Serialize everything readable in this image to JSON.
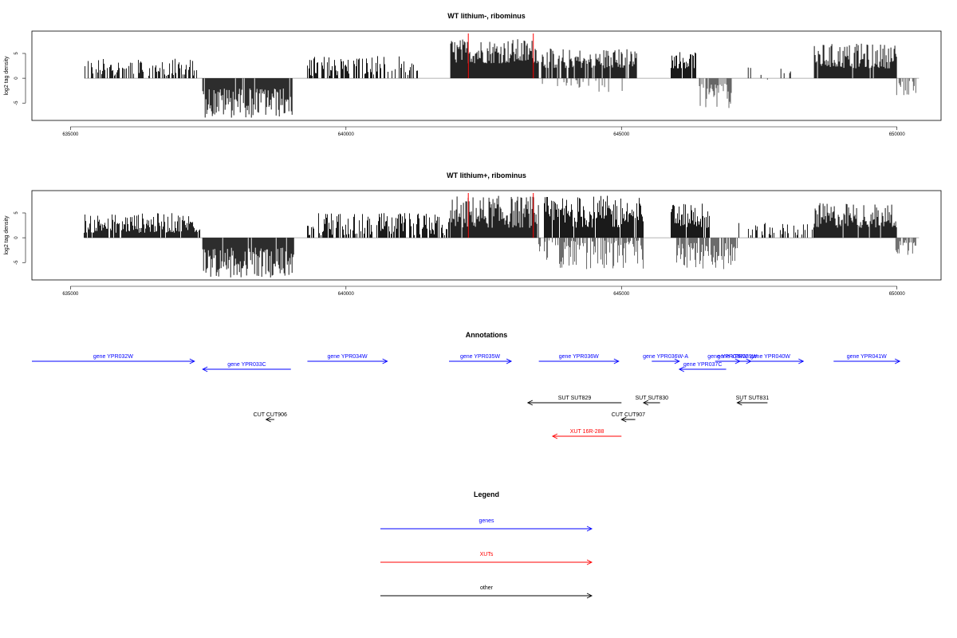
{
  "chart_data": [
    {
      "type": "bar",
      "title": "WT lithium-, ribominus",
      "xlabel": "",
      "ylabel": "log2 tag density",
      "xlim": [
        634300,
        650800
      ],
      "ylim": [
        -8.5,
        9.5
      ],
      "x_ticks": [
        "635000",
        "640000",
        "645000",
        "650000"
      ],
      "y_ticks": [
        "-5",
        "0",
        "5"
      ],
      "baseline_range": [
        635250,
        650400
      ],
      "markers": [
        642220,
        643400
      ],
      "marker_color": "#ff0000",
      "segments": [
        {
          "start": 635250,
          "end": 637300,
          "sign": 1,
          "min": 0.5,
          "max": 4.0,
          "fill": 0.55,
          "color": "#000000"
        },
        {
          "start": 637400,
          "end": 639050,
          "sign": -1,
          "min": 2.0,
          "max": 8.0,
          "fill": 0.95,
          "color": "#000000"
        },
        {
          "start": 639300,
          "end": 641300,
          "sign": 1,
          "min": 0.5,
          "max": 4.5,
          "fill": 0.5,
          "color": "#000000"
        },
        {
          "start": 641900,
          "end": 643500,
          "sign": 1,
          "min": 3.0,
          "max": 8.0,
          "fill": 0.97,
          "color": "#000000"
        },
        {
          "start": 643550,
          "end": 645300,
          "sign": 1,
          "min": 2.0,
          "max": 6.0,
          "fill": 0.85,
          "color": "#000000"
        },
        {
          "start": 643550,
          "end": 645200,
          "sign": -1,
          "min": 0.3,
          "max": 3.0,
          "fill": 0.15,
          "color": "#555555"
        },
        {
          "start": 645900,
          "end": 646350,
          "sign": 1,
          "min": 2.0,
          "max": 5.5,
          "fill": 0.9,
          "color": "#000000"
        },
        {
          "start": 646400,
          "end": 647000,
          "sign": -1,
          "min": 1.0,
          "max": 6.0,
          "fill": 0.8,
          "color": "#555555"
        },
        {
          "start": 647300,
          "end": 648200,
          "sign": 1,
          "min": 0.5,
          "max": 3.0,
          "fill": 0.1,
          "color": "#000000"
        },
        {
          "start": 647200,
          "end": 647800,
          "sign": -1,
          "min": 0.3,
          "max": 1.5,
          "fill": 0.05,
          "color": "#555555"
        },
        {
          "start": 648500,
          "end": 650000,
          "sign": 1,
          "min": 2.0,
          "max": 7.0,
          "fill": 0.92,
          "color": "#000000"
        },
        {
          "start": 649950,
          "end": 650350,
          "sign": -1,
          "min": 0.5,
          "max": 3.5,
          "fill": 0.5,
          "color": "#555555"
        }
      ]
    },
    {
      "type": "bar",
      "title": "WT lithium+, ribominus",
      "xlabel": "",
      "ylabel": "log2 tag density",
      "xlim": [
        634300,
        650800
      ],
      "ylim": [
        -8.5,
        9.5
      ],
      "x_ticks": [
        "635000",
        "640000",
        "645000",
        "650000"
      ],
      "y_ticks": [
        "-5",
        "0",
        "5"
      ],
      "baseline_range": [
        635250,
        650400
      ],
      "markers": [
        642220,
        643400
      ],
      "marker_color": "#ff0000",
      "segments": [
        {
          "start": 635250,
          "end": 637350,
          "sign": 1,
          "min": 1.0,
          "max": 5.0,
          "fill": 0.9,
          "color": "#000000"
        },
        {
          "start": 637400,
          "end": 639050,
          "sign": -1,
          "min": 2.0,
          "max": 8.0,
          "fill": 0.95,
          "color": "#000000"
        },
        {
          "start": 639300,
          "end": 641900,
          "sign": 1,
          "min": 0.5,
          "max": 5.0,
          "fill": 0.7,
          "color": "#000000"
        },
        {
          "start": 641900,
          "end": 643500,
          "sign": 1,
          "min": 2.0,
          "max": 8.5,
          "fill": 0.97,
          "color": "#000000"
        },
        {
          "start": 643600,
          "end": 645400,
          "sign": 1,
          "min": 2.0,
          "max": 8.5,
          "fill": 0.97,
          "color": "#000000"
        },
        {
          "start": 643500,
          "end": 645400,
          "sign": -1,
          "min": 0.5,
          "max": 6.5,
          "fill": 0.6,
          "color": "#555555"
        },
        {
          "start": 645900,
          "end": 646600,
          "sign": 1,
          "min": 2.0,
          "max": 7.5,
          "fill": 0.95,
          "color": "#000000"
        },
        {
          "start": 646000,
          "end": 647100,
          "sign": -1,
          "min": 1.0,
          "max": 6.5,
          "fill": 0.85,
          "color": "#555555"
        },
        {
          "start": 647100,
          "end": 648500,
          "sign": 1,
          "min": 0.5,
          "max": 3.0,
          "fill": 0.35,
          "color": "#000000"
        },
        {
          "start": 648500,
          "end": 650000,
          "sign": 1,
          "min": 2.0,
          "max": 7.0,
          "fill": 0.95,
          "color": "#000000"
        },
        {
          "start": 649950,
          "end": 650350,
          "sign": -1,
          "min": 0.5,
          "max": 4.0,
          "fill": 0.7,
          "color": "#555555"
        }
      ]
    }
  ],
  "annotations": {
    "title": "Annotations",
    "features": [
      {
        "label": "gene YPR032W",
        "start": 634300,
        "end": 637250,
        "dir": "right",
        "row": 0,
        "color": "#0000ff"
      },
      {
        "label": "gene YPR033C",
        "start": 637400,
        "end": 639000,
        "dir": "left",
        "row": 1,
        "color": "#0000ff"
      },
      {
        "label": "gene YPR034W",
        "start": 639300,
        "end": 640750,
        "dir": "right",
        "row": 0,
        "color": "#0000ff"
      },
      {
        "label": "gene YPR035W",
        "start": 641870,
        "end": 643000,
        "dir": "right",
        "row": 0,
        "color": "#0000ff"
      },
      {
        "label": "gene YPR036W",
        "start": 643500,
        "end": 644950,
        "dir": "right",
        "row": 0,
        "color": "#0000ff"
      },
      {
        "label": "gene YPR036W-A",
        "start": 645550,
        "end": 646050,
        "dir": "right",
        "row": 0,
        "color": "#0000ff"
      },
      {
        "label": "gene YPR037C",
        "start": 646050,
        "end": 646900,
        "dir": "left",
        "row": 1,
        "color": "#0000ff"
      },
      {
        "label": "gene YPR038W",
        "start": 646700,
        "end": 647150,
        "dir": "right",
        "row": 0,
        "color": "#0000ff"
      },
      {
        "label": "gene YPR039W",
        "start": 646850,
        "end": 647350,
        "dir": "right",
        "row": 0,
        "color": "#0000ff"
      },
      {
        "label": "gene YPR040W",
        "start": 647100,
        "end": 648300,
        "dir": "right",
        "row": 0,
        "color": "#0000ff"
      },
      {
        "label": "gene YPR041W",
        "start": 648850,
        "end": 650050,
        "dir": "right",
        "row": 0,
        "color": "#0000ff"
      },
      {
        "label": "SUT SUT829",
        "start": 643300,
        "end": 645000,
        "dir": "left",
        "row": 2,
        "color": "#000000"
      },
      {
        "label": "SUT SUT830",
        "start": 645400,
        "end": 645700,
        "dir": "left",
        "row": 2,
        "color": "#000000"
      },
      {
        "label": "SUT SUT831",
        "start": 647100,
        "end": 647650,
        "dir": "left",
        "row": 2,
        "color": "#000000"
      },
      {
        "label": "CUT CUT906",
        "start": 638550,
        "end": 638700,
        "dir": "left",
        "row": 3,
        "color": "#000000"
      },
      {
        "label": "CUT CUT907",
        "start": 645000,
        "end": 645250,
        "dir": "left",
        "row": 3,
        "color": "#000000"
      },
      {
        "label": "XUT 16R-288",
        "start": 643750,
        "end": 645000,
        "dir": "left",
        "row": 4,
        "color": "#ff0000"
      }
    ]
  },
  "legend": {
    "title": "Legend",
    "items": [
      {
        "label": "genes",
        "color": "#0000ff"
      },
      {
        "label": "XUTs",
        "color": "#ff0000"
      },
      {
        "label": "other",
        "color": "#000000"
      }
    ]
  }
}
